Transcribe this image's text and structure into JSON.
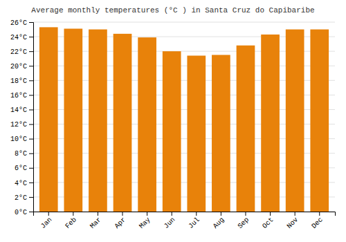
{
  "chart_data": {
    "type": "bar",
    "title": "Average monthly temperatures (°C ) in Santa Cruz do Capibaribe",
    "categories": [
      "Jan",
      "Feb",
      "Mar",
      "Apr",
      "May",
      "Jun",
      "Jul",
      "Aug",
      "Sep",
      "Oct",
      "Nov",
      "Dec"
    ],
    "values": [
      25.3,
      25.1,
      25.0,
      24.4,
      23.9,
      22.0,
      21.4,
      21.5,
      22.8,
      24.3,
      25.0,
      25.0
    ],
    "color": "#E8820A",
    "ylim": [
      0,
      26
    ],
    "yticks": [
      {
        "value": 0,
        "label": "0°C"
      },
      {
        "value": 2,
        "label": "2°C"
      },
      {
        "value": 4,
        "label": "4°C"
      },
      {
        "value": 6,
        "label": "6°C"
      },
      {
        "value": 8,
        "label": "8°C"
      },
      {
        "value": 10,
        "label": "10°C"
      },
      {
        "value": 12,
        "label": "12°C"
      },
      {
        "value": 14,
        "label": "14°C"
      },
      {
        "value": 16,
        "label": "16°C"
      },
      {
        "value": 18,
        "label": "18°C"
      },
      {
        "value": 20,
        "label": "20°C"
      },
      {
        "value": 22,
        "label": "22°C"
      },
      {
        "value": 24,
        "label": "24°C"
      },
      {
        "value": 26,
        "label": "26°C"
      }
    ],
    "grid": true
  }
}
